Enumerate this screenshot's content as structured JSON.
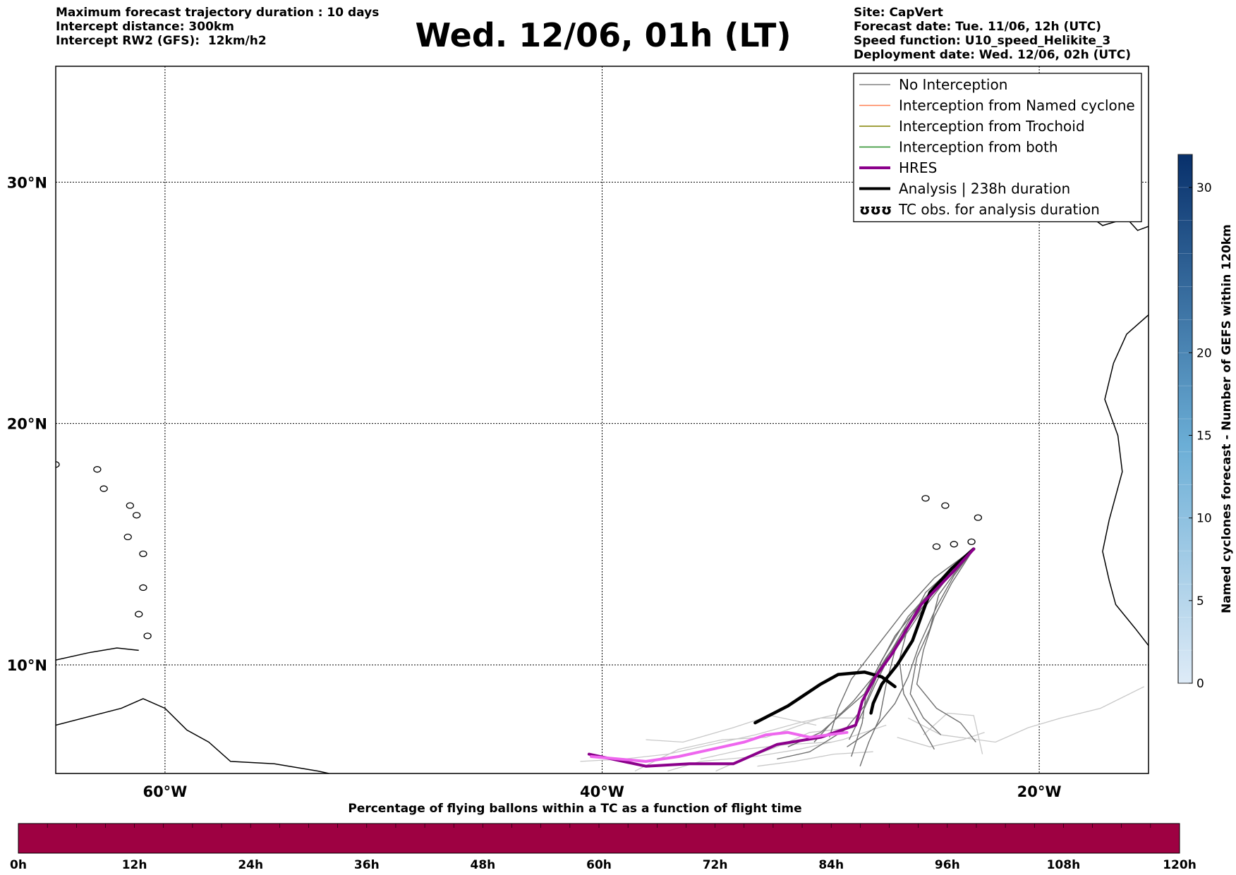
{
  "header": {
    "left_lines": [
      "Maximum forecast trajectory duration : 10 days",
      "Intercept distance: 300km",
      "Intercept RW2 (GFS):  12km/h2"
    ],
    "title": "Wed. 12/06, 01h (LT)",
    "right_lines": [
      "Site: CapVert",
      "Forecast date: Tue. 11/06, 12h (UTC)",
      "Speed function: U10_speed_Helikite_3",
      "Deployment date: Wed. 12/06, 02h (UTC)"
    ]
  },
  "map": {
    "lon_range": [
      -65,
      -15
    ],
    "lat_range": [
      5.5,
      34.8
    ],
    "lon_ticks": [
      {
        "value": -60,
        "label": "60°W"
      },
      {
        "value": -40,
        "label": "40°W"
      },
      {
        "value": -20,
        "label": "20°W"
      }
    ],
    "lat_ticks": [
      {
        "value": 30,
        "label": "30°N"
      },
      {
        "value": 20,
        "label": "20°N"
      },
      {
        "value": 10,
        "label": "10°N"
      }
    ],
    "grid": true,
    "coastlines": {
      "americas": [
        [
          -65,
          7.5
        ],
        [
          -62,
          8.2
        ],
        [
          -61,
          8.6
        ],
        [
          -60,
          8.2
        ],
        [
          -59,
          7.3
        ],
        [
          -58,
          6.8
        ],
        [
          -57,
          6.0
        ],
        [
          -55,
          5.9
        ],
        [
          -53,
          5.6
        ],
        [
          -52.5,
          5.5
        ]
      ],
      "caribbean_north": [
        [
          -65,
          10.2
        ],
        [
          -63.5,
          10.5
        ],
        [
          -62.2,
          10.7
        ],
        [
          -61.2,
          10.6
        ]
      ],
      "africa": [
        [
          -15,
          24.5
        ],
        [
          -16,
          23.7
        ],
        [
          -16.6,
          22.5
        ],
        [
          -17.0,
          21.0
        ],
        [
          -16.4,
          19.5
        ],
        [
          -16.2,
          18.0
        ],
        [
          -16.8,
          16.0
        ],
        [
          -17.1,
          14.7
        ],
        [
          -16.8,
          13.5
        ],
        [
          -16.5,
          12.5
        ],
        [
          -15.6,
          11.5
        ],
        [
          -15,
          10.8
        ]
      ],
      "canary": [
        [
          -18.0,
          28.8
        ],
        [
          -17.1,
          28.2
        ],
        [
          -16.0,
          28.5
        ],
        [
          -15.5,
          28.0
        ],
        [
          -14.0,
          28.5
        ],
        [
          -13.6,
          29.0
        ]
      ],
      "islands_cv": [
        [
          -25.2,
          16.9
        ],
        [
          -24.3,
          16.6
        ],
        [
          -23.9,
          15.0
        ],
        [
          -23.1,
          15.1
        ],
        [
          -22.8,
          16.1
        ],
        [
          -24.7,
          14.9
        ]
      ],
      "islands_carib": [
        [
          -61.7,
          15.3
        ],
        [
          -61.3,
          16.2
        ],
        [
          -61.6,
          16.6
        ],
        [
          -61.0,
          13.2
        ],
        [
          -61.2,
          12.1
        ],
        [
          -61.0,
          14.6
        ],
        [
          -63.1,
          18.1
        ],
        [
          -62.8,
          17.3
        ],
        [
          -65,
          18.3
        ],
        [
          -60.8,
          11.2
        ]
      ]
    },
    "trajectory_lines": [
      {
        "class": "analysis",
        "points": [
          [
            -23,
            14.8
          ],
          [
            -24.0,
            14.0
          ],
          [
            -25.0,
            13.0
          ],
          [
            -25.4,
            12.0
          ],
          [
            -25.8,
            11.0
          ],
          [
            -26.5,
            10.0
          ],
          [
            -27.2,
            9.2
          ],
          [
            -27.6,
            8.4
          ],
          [
            -27.7,
            8.0
          ]
        ]
      },
      {
        "class": "analysis",
        "points": [
          [
            -33.0,
            7.6
          ],
          [
            -31.5,
            8.3
          ],
          [
            -30.0,
            9.2
          ],
          [
            -29.2,
            9.6
          ],
          [
            -28.0,
            9.7
          ],
          [
            -27.2,
            9.5
          ],
          [
            -26.6,
            9.1
          ]
        ]
      },
      {
        "class": "hres",
        "points": [
          [
            -23,
            14.8
          ],
          [
            -24.0,
            13.8
          ],
          [
            -25.4,
            12.5
          ],
          [
            -26.7,
            10.5
          ],
          [
            -27.5,
            9.5
          ],
          [
            -28.1,
            8.5
          ],
          [
            -28.4,
            7.5
          ],
          [
            -30.0,
            7.0
          ],
          [
            -32.0,
            6.7
          ],
          [
            -34.0,
            5.9
          ],
          [
            -36.0,
            5.9
          ],
          [
            -38.0,
            5.8
          ],
          [
            -40.6,
            6.3
          ]
        ]
      },
      {
        "class": "hres",
        "points": [
          [
            -28.8,
            7.2
          ],
          [
            -30.5,
            7.0
          ],
          [
            -31.5,
            7.2
          ],
          [
            -32.5,
            7.1
          ],
          [
            -33.5,
            6.8
          ],
          [
            -35.0,
            6.5
          ],
          [
            -36.5,
            6.2
          ],
          [
            -38.0,
            6.0
          ],
          [
            -40.5,
            6.2
          ]
        ]
      }
    ],
    "ensemble_dark": [
      [
        [
          -23,
          14.8
        ],
        [
          -24.5,
          13.5
        ],
        [
          -26,
          12.0
        ],
        [
          -27.2,
          10.2
        ],
        [
          -28,
          8.8
        ],
        [
          -29,
          8.0
        ],
        [
          -30,
          7.2
        ],
        [
          -31.5,
          6.6
        ]
      ],
      [
        [
          -23,
          14.8
        ],
        [
          -25,
          13.0
        ],
        [
          -26.6,
          11.2
        ],
        [
          -27.6,
          9.5
        ],
        [
          -28.5,
          8.5
        ],
        [
          -29.5,
          7.6
        ],
        [
          -30.3,
          6.8
        ]
      ],
      [
        [
          -23,
          14.8
        ],
        [
          -24.8,
          13.6
        ],
        [
          -26.2,
          12.2
        ],
        [
          -27.4,
          10.8
        ],
        [
          -28.6,
          9.4
        ],
        [
          -29.2,
          8.2
        ],
        [
          -29.6,
          7.0
        ]
      ],
      [
        [
          -23,
          14.8
        ],
        [
          -24.3,
          13.7
        ],
        [
          -25.6,
          12.4
        ],
        [
          -26.5,
          11.0
        ],
        [
          -27.5,
          9.2
        ],
        [
          -28.1,
          8.0
        ],
        [
          -28.7,
          6.9
        ]
      ],
      [
        [
          -23,
          14.8
        ],
        [
          -23.9,
          13.7
        ],
        [
          -24.7,
          12.4
        ],
        [
          -25.5,
          10.8
        ],
        [
          -26.0,
          9.5
        ],
        [
          -26.6,
          8.4
        ],
        [
          -27.5,
          7.4
        ],
        [
          -28.8,
          6.6
        ]
      ],
      [
        [
          -23,
          14.8
        ],
        [
          -23.8,
          13.9
        ],
        [
          -24.6,
          12.9
        ],
        [
          -25.0,
          11.5
        ],
        [
          -25.6,
          10.3
        ],
        [
          -25.9,
          8.8
        ],
        [
          -25.3,
          7.8
        ],
        [
          -24.5,
          7.1
        ]
      ],
      [
        [
          -23,
          14.8
        ],
        [
          -24.1,
          13.9
        ],
        [
          -25.2,
          13.0
        ],
        [
          -26.0,
          11.6
        ],
        [
          -26.4,
          10.2
        ],
        [
          -26.2,
          8.8
        ],
        [
          -25.5,
          7.6
        ],
        [
          -24.8,
          6.5
        ]
      ],
      [
        [
          -23,
          14.8
        ],
        [
          -24.6,
          13.3
        ],
        [
          -25.8,
          11.8
        ],
        [
          -27.0,
          10.3
        ],
        [
          -27.9,
          9.0
        ],
        [
          -28.1,
          7.6
        ],
        [
          -28.6,
          6.2
        ]
      ],
      [
        [
          -23,
          14.8
        ],
        [
          -24.0,
          13.4
        ],
        [
          -24.8,
          12.0
        ],
        [
          -25.3,
          10.6
        ],
        [
          -25.6,
          9.2
        ],
        [
          -24.7,
          8.2
        ],
        [
          -23.6,
          7.6
        ],
        [
          -22.9,
          6.8
        ]
      ],
      [
        [
          -23,
          14.8
        ],
        [
          -24.2,
          13.6
        ],
        [
          -25.4,
          12.2
        ],
        [
          -26.6,
          10.6
        ],
        [
          -27.0,
          9.2
        ],
        [
          -27.3,
          7.8
        ],
        [
          -27.8,
          6.8
        ],
        [
          -28.2,
          5.8
        ]
      ],
      [
        [
          -23,
          14.8
        ],
        [
          -24.9,
          12.9
        ],
        [
          -26.3,
          11.3
        ],
        [
          -27.3,
          9.8
        ],
        [
          -28.0,
          8.3
        ],
        [
          -28.9,
          7.3
        ],
        [
          -30.5,
          6.4
        ],
        [
          -32.0,
          6.1
        ]
      ]
    ],
    "ensemble_light": [
      [
        [
          -29,
          8.0
        ],
        [
          -31.0,
          7.6
        ],
        [
          -33.0,
          7.1
        ],
        [
          -35.0,
          6.7
        ],
        [
          -37.0,
          6.3
        ],
        [
          -39.0,
          6.1
        ],
        [
          -41.0,
          6.0
        ]
      ],
      [
        [
          -28,
          7.8
        ],
        [
          -30.0,
          7.8
        ],
        [
          -32.5,
          7.0
        ],
        [
          -34.5,
          6.9
        ],
        [
          -36.5,
          6.5
        ],
        [
          -38.5,
          5.6
        ]
      ],
      [
        [
          -27,
          7.5
        ],
        [
          -29.0,
          6.9
        ],
        [
          -31.0,
          6.5
        ],
        [
          -33.0,
          6.2
        ],
        [
          -35.5,
          6.0
        ],
        [
          -37.0,
          5.6
        ]
      ],
      [
        [
          -28.5,
          7.4
        ],
        [
          -30.5,
          7.2
        ],
        [
          -32.0,
          6.6
        ],
        [
          -33.8,
          6.0
        ],
        [
          -34.8,
          5.6
        ]
      ],
      [
        [
          -26,
          7.8
        ],
        [
          -24.5,
          7.1
        ],
        [
          -22.0,
          6.8
        ],
        [
          -20.5,
          7.4
        ],
        [
          -19.0,
          7.8
        ],
        [
          -17.2,
          8.2
        ],
        [
          -15.2,
          9.1
        ]
      ],
      [
        [
          -26.5,
          7.0
        ],
        [
          -25.0,
          6.6
        ],
        [
          -23.5,
          6.9
        ],
        [
          -22.5,
          7.2
        ]
      ],
      [
        [
          -29.5,
          6.8
        ],
        [
          -31.5,
          6.7
        ],
        [
          -33.5,
          6.5
        ],
        [
          -35.5,
          6.1
        ]
      ],
      [
        [
          -30.2,
          7.5
        ],
        [
          -32.3,
          7.9
        ],
        [
          -34.0,
          7.4
        ],
        [
          -36.3,
          6.8
        ],
        [
          -38.0,
          6.9
        ]
      ],
      [
        [
          -25.3,
          7.1
        ],
        [
          -24.2,
          8.0
        ],
        [
          -23.0,
          7.9
        ],
        [
          -22.6,
          6.3
        ]
      ],
      [
        [
          -27.6,
          6.4
        ],
        [
          -29.4,
          6.3
        ],
        [
          -31.2,
          6.0
        ],
        [
          -32.9,
          5.8
        ]
      ]
    ],
    "legend": [
      {
        "label": "No Interception",
        "color": "#808080",
        "width": 1.5
      },
      {
        "label": "Interception from Named cyclone",
        "color": "#ff7f50",
        "width": 1.5
      },
      {
        "label": "Interception from Trochoid",
        "color": "#808000",
        "width": 1.5
      },
      {
        "label": "Interception from both",
        "color": "#228b22",
        "width": 1.5
      },
      {
        "label": "HRES",
        "color": "#8b008b",
        "width": 4
      },
      {
        "label": "Analysis | 238h duration",
        "color": "#000000",
        "width": 4
      },
      {
        "label": "TC obs. for analysis duration",
        "color": "#000000",
        "width": 0,
        "symbol": "ʊʊʊ"
      }
    ]
  },
  "colorbar_right": {
    "label": "Named cyclones forecast - Number of GEFS within 120km",
    "range": [
      0,
      32
    ],
    "ticks": [
      0,
      5,
      10,
      15,
      20,
      30
    ],
    "color_low": "#deebf7",
    "color_high": "#08306b"
  },
  "colorbar_bottom": {
    "label": "Percentage of flying ballons within a TC as a function of flight time",
    "color": "#9e0142",
    "ticks": [
      "0h",
      "12h",
      "24h",
      "36h",
      "48h",
      "60h",
      "72h",
      "84h",
      "96h",
      "108h",
      "120h"
    ]
  }
}
